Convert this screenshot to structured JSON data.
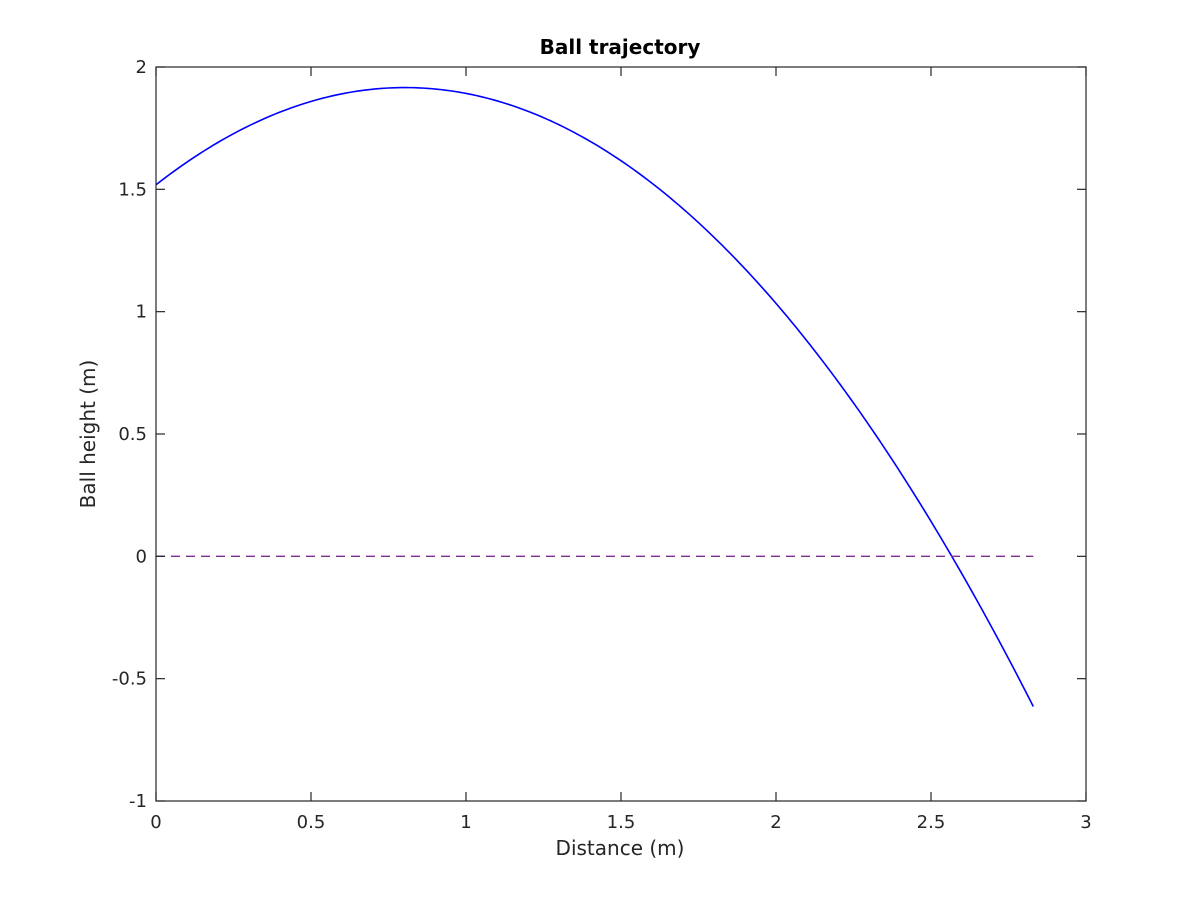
{
  "chart_data": {
    "type": "line",
    "title": "Ball trajectory",
    "xlabel": "Distance (m)",
    "ylabel": "Ball height (m)",
    "xlim": [
      0,
      3
    ],
    "ylim": [
      -1,
      2
    ],
    "xticks": [
      0,
      0.5,
      1,
      1.5,
      2,
      2.5,
      3
    ],
    "xtick_labels": [
      "0",
      "0.5",
      "1",
      "1.5",
      "2",
      "2.5",
      "3"
    ],
    "yticks": [
      -1,
      -0.5,
      0,
      0.5,
      1,
      1.5,
      2
    ],
    "ytick_labels": [
      "-1",
      "-0.5",
      "0",
      "0.5",
      "1",
      "1.5",
      "2"
    ],
    "grid": false,
    "box": true,
    "series": [
      {
        "style": "solid",
        "color": "#0000ff",
        "x": [
          0,
          0.1,
          0.2,
          0.3,
          0.4,
          0.5,
          0.6,
          0.7,
          0.81,
          0.9,
          1.0,
          1.1,
          1.2,
          1.3,
          1.4,
          1.5,
          1.6,
          1.7,
          1.8,
          1.9,
          2.0,
          2.1,
          2.2,
          2.3,
          2.4,
          2.5,
          2.58,
          2.7,
          2.83
        ],
        "y": [
          1.5,
          1.597,
          1.683,
          1.757,
          1.818,
          1.866,
          1.901,
          1.922,
          1.91,
          1.923,
          1.906,
          1.876,
          1.834,
          1.778,
          1.709,
          1.626,
          1.531,
          1.423,
          1.301,
          1.167,
          1.02,
          0.859,
          0.686,
          0.499,
          0.3,
          0.087,
          -0.001,
          -0.239,
          -0.57
        ]
      },
      {
        "style": "dashed",
        "color": "#7e2f8e",
        "x": [
          0,
          2.83
        ],
        "y": [
          0,
          0
        ]
      }
    ]
  }
}
